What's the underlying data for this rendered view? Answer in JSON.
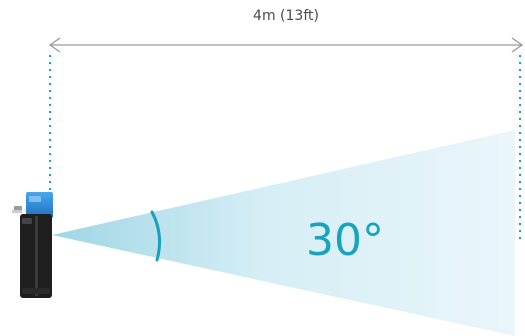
{
  "distance_label": "4m (13ft)",
  "angle_label": "30°",
  "colors": {
    "cone_light": "#e4f3f8",
    "cone_dark": "#9fd6e5",
    "arc": "#18a0bd",
    "angle_text": "#1aa3bf",
    "guide_dotted": "#1aa3bf",
    "arrow": "#9a9a9a",
    "device_body": "#1e1e1e",
    "device_head": "#2f86d4"
  },
  "icons": {
    "device": "sensor-device-icon"
  }
}
